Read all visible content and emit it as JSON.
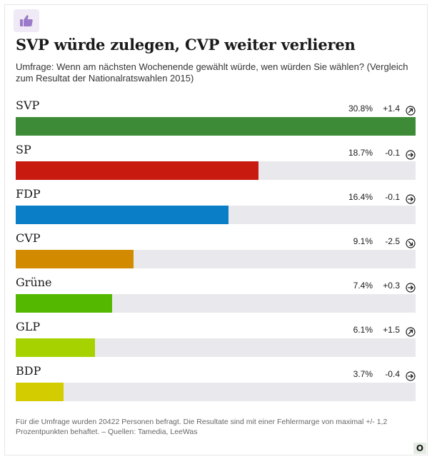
{
  "header": {
    "icon": "thumbs-up-icon",
    "title": "SVP würde zulegen, CVP weiter verlieren",
    "subtitle": "Umfrage: Wenn am nächsten Wochenende gewählt würde, wen würden Sie wählen? (Vergleich zum Resultat der Nationalratswahlen 2015)"
  },
  "chart_data": {
    "type": "bar",
    "orientation": "horizontal",
    "categories": [
      "SVP",
      "SP",
      "FDP",
      "CVP",
      "Grüne",
      "GLP",
      "BDP"
    ],
    "values": [
      30.8,
      18.7,
      16.4,
      9.1,
      7.4,
      6.1,
      3.7
    ],
    "value_labels": [
      "30.8%",
      "18.7%",
      "16.4%",
      "9.1%",
      "7.4%",
      "6.1%",
      "3.7%"
    ],
    "changes": [
      1.4,
      -0.1,
      -0.1,
      -2.5,
      0.3,
      1.5,
      -0.4
    ],
    "change_labels": [
      "+1.4",
      "-0.1",
      "-0.1",
      "-2.5",
      "+0.3",
      "+1.5",
      "-0.4"
    ],
    "change_icons": [
      "arrow-up-right-icon",
      "arrow-right-icon",
      "arrow-right-icon",
      "arrow-down-right-icon",
      "arrow-right-icon",
      "arrow-up-right-icon",
      "arrow-right-icon"
    ],
    "colors": [
      "#3d8b37",
      "#c81a0e",
      "#0a7fc8",
      "#d28b00",
      "#55b800",
      "#a6d200",
      "#d2cc00"
    ],
    "track_color": "#e9e8ec",
    "xlim": [
      0,
      30.8
    ],
    "grid": false,
    "legend": "none"
  },
  "footer": {
    "note": "Für die Umfrage wurden 20422 Personen befragt. Die Resultate sind mit einer Fehlermarge von maximal +/- 1,2 Prozentpunkten behaftet. – Quellen: Tamedia, LeeWas"
  },
  "branding": {
    "logo_text": "O"
  }
}
